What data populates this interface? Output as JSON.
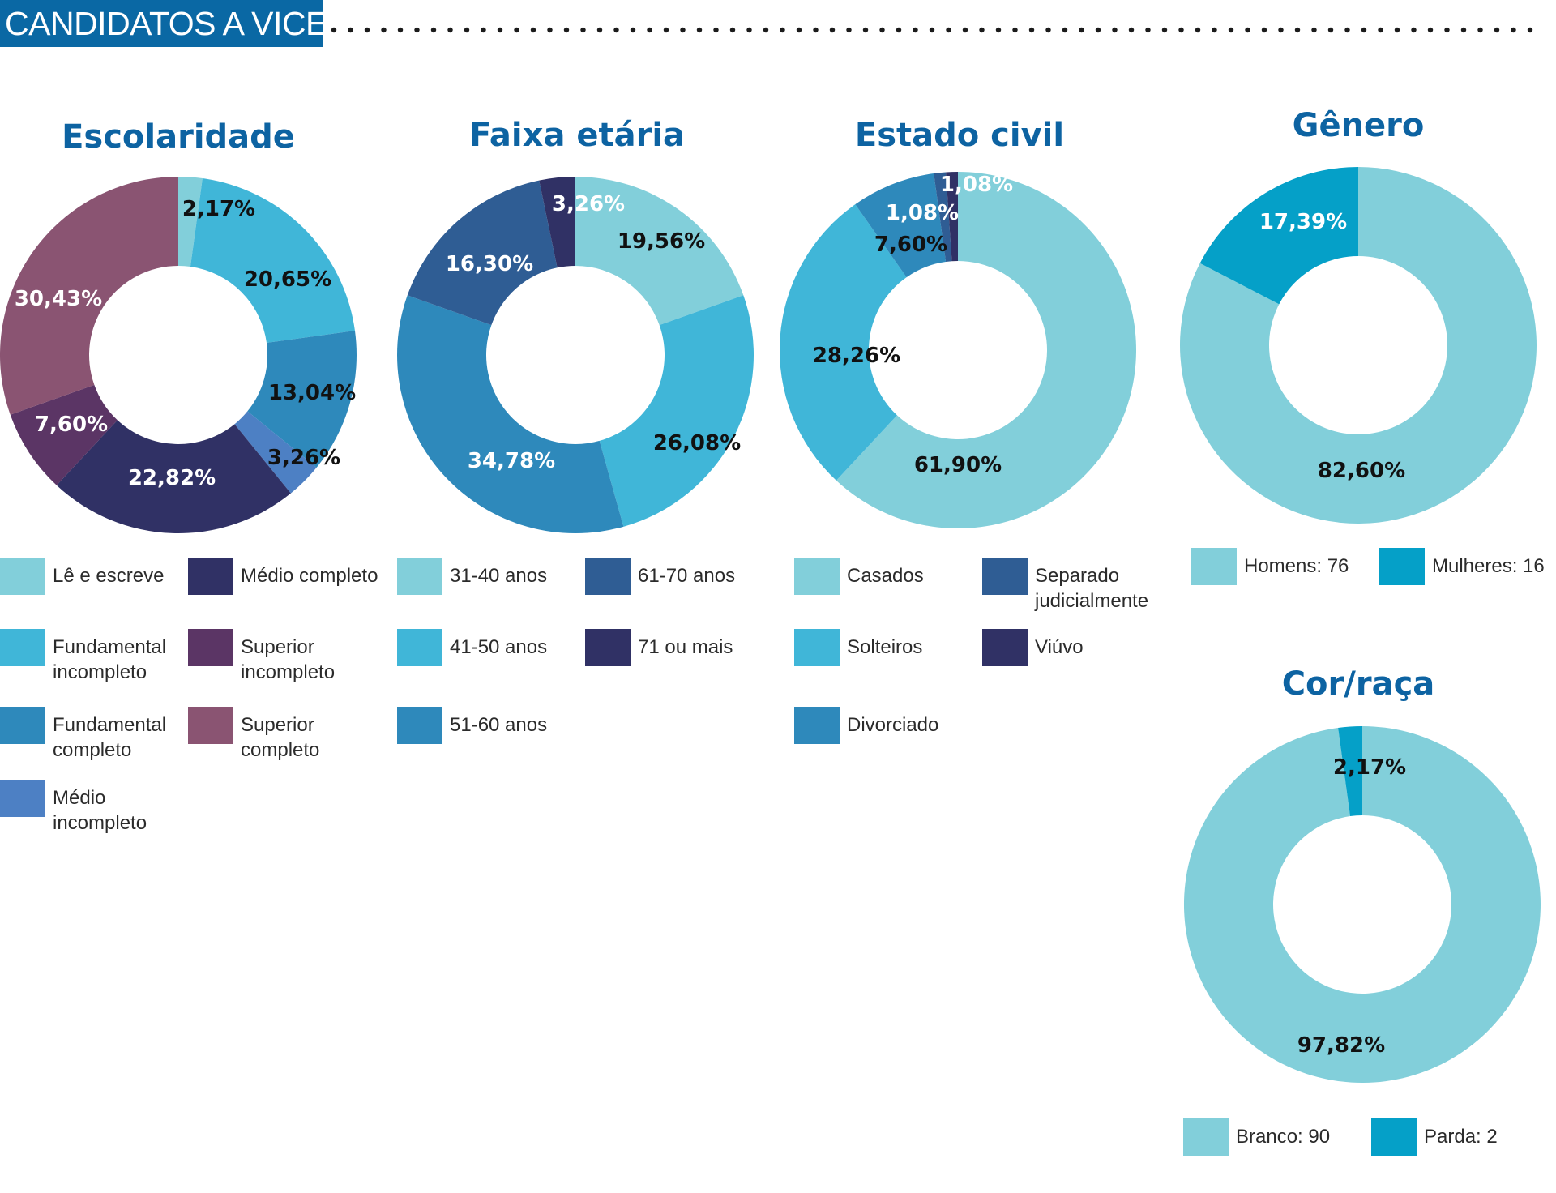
{
  "header": {
    "title": "CANDIDATOS A VICE"
  },
  "chart_data": [
    {
      "type": "pie",
      "title": "Escolaridade",
      "categories": [
        "Lê e escreve",
        "Fundamental incompleto",
        "Fundamental completo",
        "Médio incompleto",
        "Médio completo",
        "Superior incompleto",
        "Superior completo"
      ],
      "values": [
        2.17,
        20.65,
        13.04,
        3.26,
        22.82,
        7.6,
        30.43
      ],
      "data_labels": [
        "2,17%",
        "20,65%",
        "13,04%",
        "3,26%",
        "22,82%",
        "7,60%",
        "30,43%"
      ],
      "colors": [
        "#82cfda",
        "#40b6d8",
        "#2e89bb",
        "#4d80c4",
        "#303165",
        "#5b3565",
        "#8a5472"
      ],
      "label_colors": [
        "#111111",
        "#111111",
        "#111111",
        "#111111",
        "#ffffff",
        "#ffffff",
        "#ffffff"
      ]
    },
    {
      "type": "pie",
      "title": "Faixa etária",
      "categories": [
        "31-40 anos",
        "41-50 anos",
        "51-60 anos",
        "61-70 anos",
        "71 ou mais"
      ],
      "values": [
        19.56,
        26.08,
        34.78,
        16.3,
        3.26
      ],
      "data_labels": [
        "19,56%",
        "26,08%",
        "34,78%",
        "16,30%",
        "3,26%"
      ],
      "colors": [
        "#82cfda",
        "#40b6d8",
        "#2e89bb",
        "#2f5d94",
        "#303165"
      ],
      "label_colors": [
        "#111111",
        "#111111",
        "#ffffff",
        "#ffffff",
        "#ffffff"
      ]
    },
    {
      "type": "pie",
      "title": "Estado civil",
      "categories": [
        "Casados",
        "Solteiros",
        "Divorciado",
        "Separado judicialmente",
        "Viúvo"
      ],
      "values": [
        61.9,
        28.26,
        7.6,
        1.08,
        1.08
      ],
      "data_labels": [
        "61,90%",
        "28,26%",
        "7,60%",
        "1,08%",
        "1,08%"
      ],
      "colors": [
        "#82cfda",
        "#40b6d8",
        "#2e89bb",
        "#2f5d94",
        "#303165"
      ],
      "label_colors": [
        "#111111",
        "#111111",
        "#111111",
        "#ffffff",
        "#ffffff"
      ]
    },
    {
      "type": "pie",
      "title": "Gênero",
      "categories": [
        "Homens: 76",
        "Mulheres: 16"
      ],
      "values": [
        82.6,
        17.39
      ],
      "data_labels": [
        "82,60%",
        "17,39%"
      ],
      "colors": [
        "#82cfda",
        "#05a0c8"
      ],
      "label_colors": [
        "#111111",
        "#ffffff"
      ]
    },
    {
      "type": "pie",
      "title": "Cor/raça",
      "categories": [
        "Branco: 90",
        "Parda: 2"
      ],
      "values": [
        97.82,
        2.17
      ],
      "data_labels": [
        "97,82%",
        "2,17%"
      ],
      "colors": [
        "#82cfda",
        "#05a0c8"
      ],
      "label_colors": [
        "#111111",
        "#111111"
      ]
    }
  ]
}
